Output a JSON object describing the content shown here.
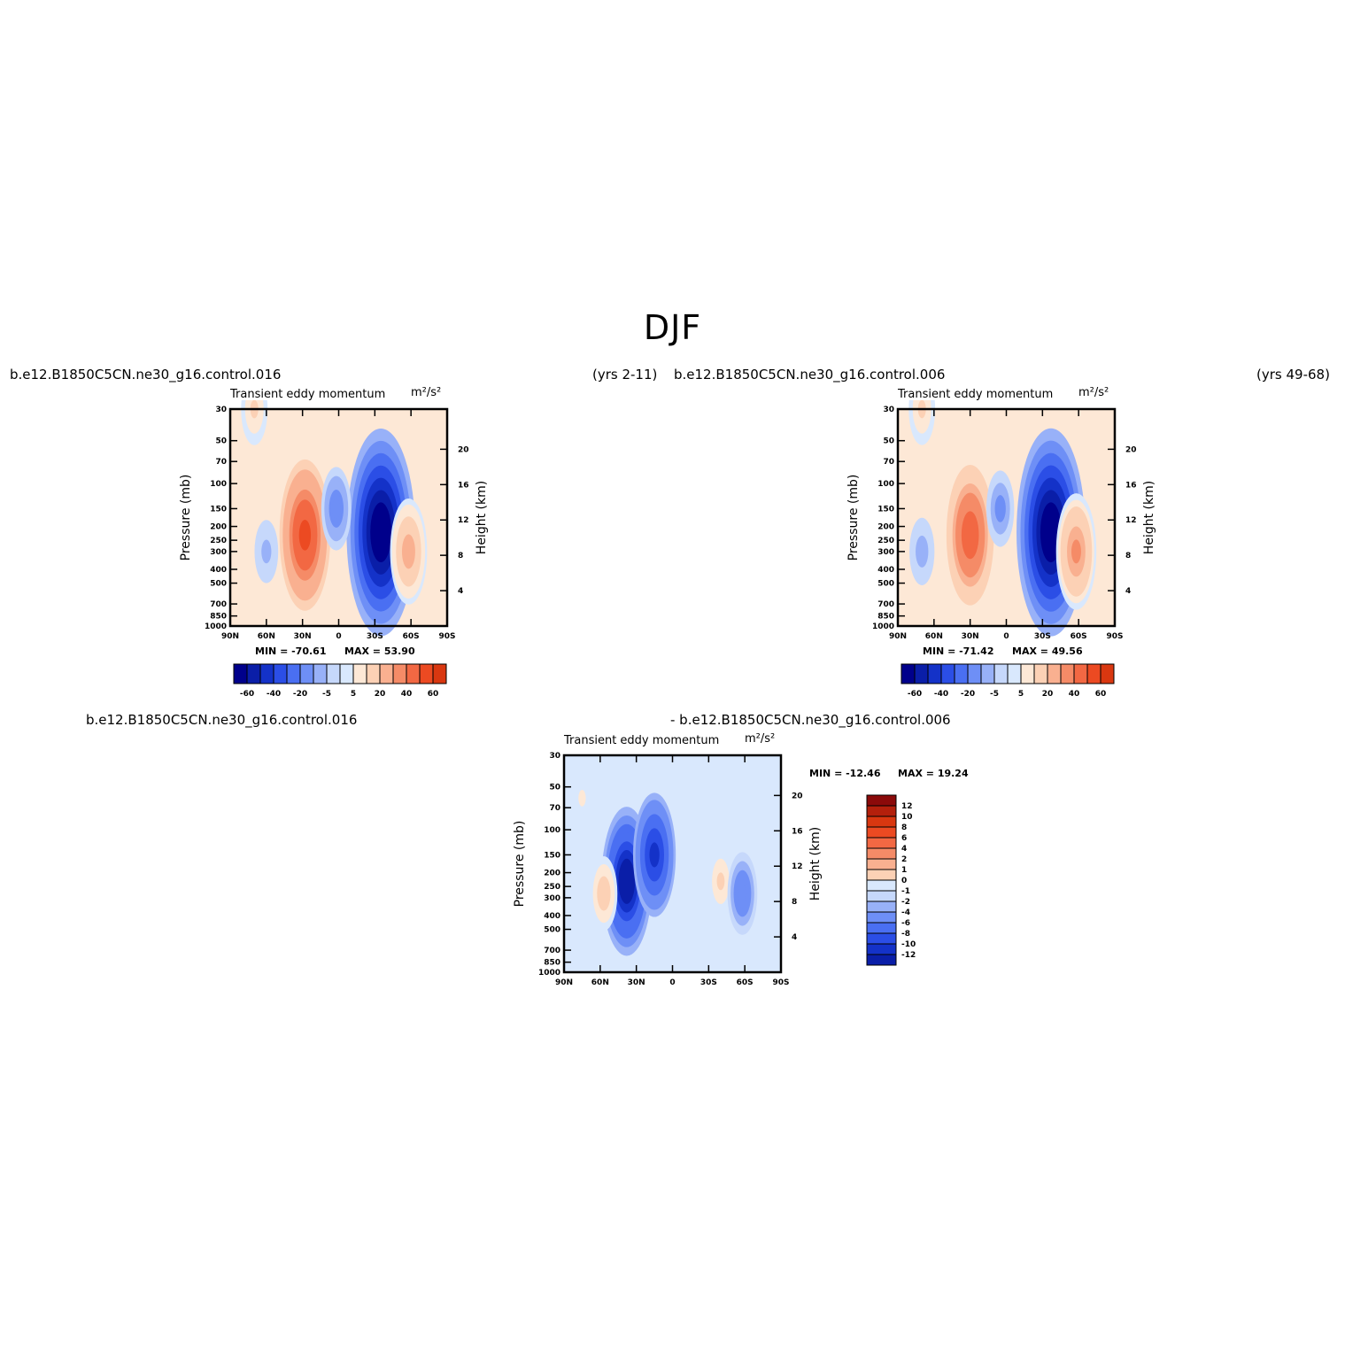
{
  "main_title": "DJF",
  "headers": {
    "left_case": "b.e12.B1850C5CN.ne30_g16.control.016",
    "left_years": "(yrs 2-11)",
    "right_case": "b.e12.B1850C5CN.ne30_g16.control.006",
    "right_years": "(yrs 49-68)",
    "diff_case_a": "b.e12.B1850C5CN.ne30_g16.control.016",
    "diff_case_b": "- b.e12.B1850C5CN.ne30_g16.control.006"
  },
  "chart_data": [
    {
      "id": "left",
      "type": "heatmap",
      "title": "Transient eddy momentum",
      "units": "m²/s²",
      "xlabel": "",
      "ylabel": "Pressure (mb)",
      "ylabel_right": "Height (km)",
      "x_ticks": [
        "90N",
        "60N",
        "30N",
        "0",
        "30S",
        "60S",
        "90S"
      ],
      "x_range": [
        90,
        -90
      ],
      "y_ticks": [
        "30",
        "50",
        "70",
        "100",
        "150",
        "200",
        "250",
        "300",
        "400",
        "500",
        "700",
        "850",
        "1000"
      ],
      "y_ticks_right": [
        "20",
        "16",
        "12",
        "8",
        "4"
      ],
      "min_text": "MIN = -70.61",
      "max_text": "MAX = 53.90",
      "min": -70.61,
      "max": 53.9,
      "colorbar_labels": [
        "-60",
        "-40",
        "-20",
        "-5",
        "5",
        "20",
        "40",
        "60"
      ],
      "colorbar_levels": [
        -70,
        -60,
        -50,
        -40,
        -30,
        -20,
        -10,
        -5,
        0,
        5,
        10,
        20,
        30,
        40,
        50,
        60,
        70
      ],
      "features": [
        {
          "lat": 70,
          "p": 30,
          "value": 10
        },
        {
          "lat": 28,
          "p": 230,
          "value": 54
        },
        {
          "lat": -35,
          "p": 220,
          "value": -70
        },
        {
          "lat": 2,
          "p": 150,
          "value": -15
        },
        {
          "lat": -58,
          "p": 300,
          "value": 25
        },
        {
          "lat": 60,
          "p": 300,
          "value": -6
        }
      ]
    },
    {
      "id": "right",
      "type": "heatmap",
      "title": "Transient eddy momentum",
      "units": "m²/s²",
      "xlabel": "",
      "ylabel": "Pressure (mb)",
      "ylabel_right": "Height (km)",
      "x_ticks": [
        "90N",
        "60N",
        "30N",
        "0",
        "30S",
        "60S",
        "90S"
      ],
      "x_range": [
        90,
        -90
      ],
      "y_ticks": [
        "30",
        "50",
        "70",
        "100",
        "150",
        "200",
        "250",
        "300",
        "400",
        "500",
        "700",
        "850",
        "1000"
      ],
      "y_ticks_right": [
        "20",
        "16",
        "12",
        "8",
        "4"
      ],
      "min_text": "MIN = -71.42",
      "max_text": "MAX = 49.56",
      "min": -71.42,
      "max": 49.56,
      "colorbar_labels": [
        "-60",
        "-40",
        "-20",
        "-5",
        "5",
        "20",
        "40",
        "60"
      ],
      "colorbar_levels": [
        -70,
        -60,
        -50,
        -40,
        -30,
        -20,
        -10,
        -5,
        0,
        5,
        10,
        20,
        30,
        40,
        50,
        60,
        70
      ],
      "features": [
        {
          "lat": 70,
          "p": 30,
          "value": 10
        },
        {
          "lat": 30,
          "p": 230,
          "value": 49
        },
        {
          "lat": -37,
          "p": 220,
          "value": -71
        },
        {
          "lat": 5,
          "p": 150,
          "value": -12
        },
        {
          "lat": -58,
          "p": 300,
          "value": 30
        },
        {
          "lat": 70,
          "p": 300,
          "value": -8
        }
      ]
    },
    {
      "id": "diff",
      "type": "heatmap",
      "title": "Transient eddy momentum",
      "units": "m²/s²",
      "xlabel": "",
      "ylabel": "Pressure (mb)",
      "ylabel_right": "Height (km)",
      "x_ticks": [
        "90N",
        "60N",
        "30N",
        "0",
        "30S",
        "60S",
        "90S"
      ],
      "x_range": [
        90,
        -90
      ],
      "y_ticks": [
        "30",
        "50",
        "70",
        "100",
        "150",
        "200",
        "250",
        "300",
        "400",
        "500",
        "700",
        "850",
        "1000"
      ],
      "y_ticks_right": [
        "20",
        "16",
        "12",
        "8",
        "4"
      ],
      "min_text": "MIN = -12.46",
      "max_text": "MAX = 19.24",
      "min": -12.46,
      "max": 19.24,
      "colorbar_labels": [
        "12",
        "10",
        "8",
        "6",
        "4",
        "2",
        "1",
        "0",
        "-1",
        "-2",
        "-4",
        "-6",
        "-8",
        "-10",
        "-12"
      ],
      "colorbar_levels": [
        14,
        12,
        10,
        8,
        6,
        4,
        2,
        1,
        0,
        -1,
        -2,
        -4,
        -6,
        -8,
        -10,
        -12,
        -14
      ],
      "features": [
        {
          "lat": 38,
          "p": 230,
          "value": -12
        },
        {
          "lat": 15,
          "p": 150,
          "value": -9
        },
        {
          "lat": 57,
          "p": 280,
          "value": 3
        },
        {
          "lat": -40,
          "p": 230,
          "value": 2
        },
        {
          "lat": -58,
          "p": 280,
          "value": -4
        },
        {
          "lat": 75,
          "p": 60,
          "value": 1
        }
      ]
    }
  ],
  "colors": {
    "blues": [
      "#00008b",
      "#0a1ea8",
      "#1432c8",
      "#2b4ee6",
      "#4a6ff2",
      "#6e8ff6",
      "#98b1f8",
      "#c6d8fb",
      "#d9e8fd"
    ],
    "reds": [
      "#fde8d6",
      "#fcd1b5",
      "#f9b090",
      "#f58b67",
      "#f26843",
      "#ec4a22",
      "#d93710",
      "#b4200c",
      "#8b0a0a"
    ]
  }
}
